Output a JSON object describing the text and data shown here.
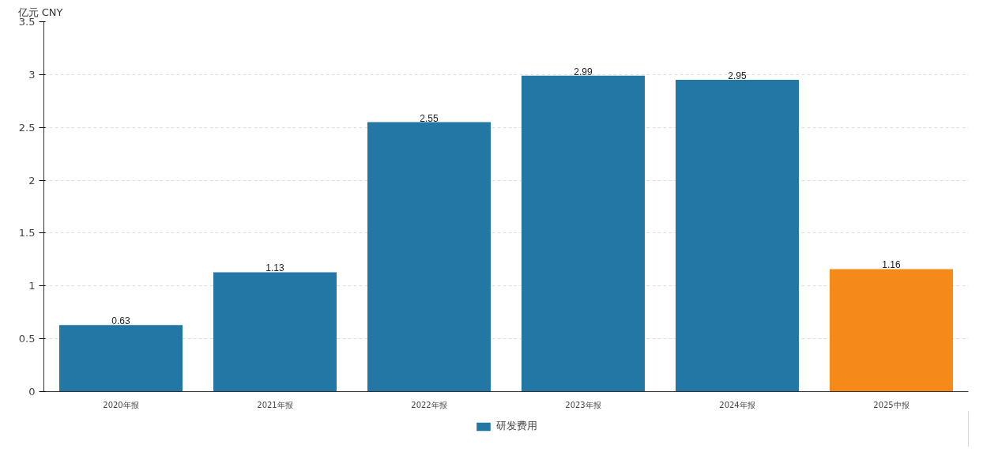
{
  "chart_data": {
    "type": "bar",
    "ylabel": "亿元  CNY",
    "categories": [
      "2020年报",
      "2021年报",
      "2022年报",
      "2023年报",
      "2024年报",
      "2025中报"
    ],
    "series": [
      {
        "name": "研发费用",
        "color": "#2277a4",
        "colors": [
          "#2277a4",
          "#2277a4",
          "#2277a4",
          "#2277a4",
          "#2277a4",
          "#f5891a"
        ],
        "values": [
          0.63,
          1.13,
          2.55,
          2.99,
          2.95,
          1.16
        ]
      }
    ],
    "ylim": [
      0,
      3.5
    ],
    "yticks": [
      0,
      0.5,
      1,
      1.5,
      2,
      2.5,
      3,
      3.5
    ],
    "grid": "y",
    "legend": "bottom",
    "data_labels": true
  }
}
